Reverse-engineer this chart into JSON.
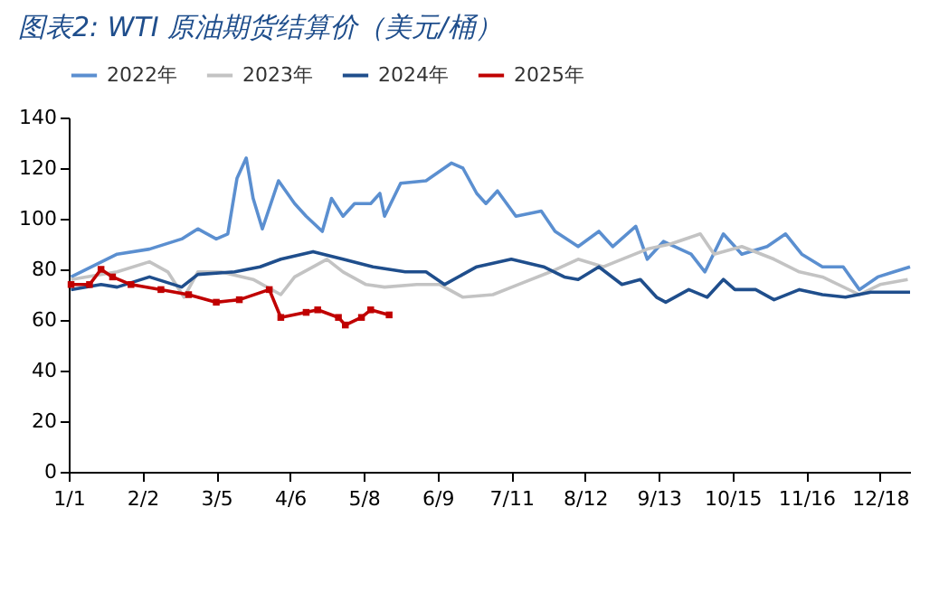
{
  "chart_data": {
    "type": "line",
    "title": "图表2:  WTI 原油期货结算价（美元/桶）",
    "xlim": [
      "--01-01",
      "--12-31"
    ],
    "xticks": [
      {
        "value": "--01-01",
        "label": "1/1"
      },
      {
        "value": "--02-02",
        "label": "2/2"
      },
      {
        "value": "--03-05",
        "label": "3/5"
      },
      {
        "value": "--04-06",
        "label": "4/6"
      },
      {
        "value": "--05-08",
        "label": "5/8"
      },
      {
        "value": "--06-09",
        "label": "6/9"
      },
      {
        "value": "--07-11",
        "label": "7/11"
      },
      {
        "value": "--08-12",
        "label": "8/12"
      },
      {
        "value": "--09-13",
        "label": "9/13"
      },
      {
        "value": "--10-15",
        "label": "10/15"
      },
      {
        "value": "--11-16",
        "label": "11/16"
      },
      {
        "value": "--12-18",
        "label": "12/18"
      }
    ],
    "ylim": [
      0,
      140
    ],
    "yticks": [
      0,
      20,
      40,
      60,
      80,
      100,
      120,
      140
    ],
    "grid": false,
    "legend": "top",
    "series": [
      {
        "name": "2022年",
        "color": "#5b8fd0",
        "x": [
          "--01-02",
          "--01-22",
          "--02-05",
          "--02-19",
          "--02-26",
          "--03-05",
          "--03-10",
          "--03-14",
          "--03-18",
          "--03-21",
          "--03-25",
          "--04-01",
          "--04-08",
          "--04-13",
          "--04-20",
          "--04-24",
          "--04-29",
          "--05-04",
          "--05-11",
          "--05-15",
          "--05-17",
          "--05-24",
          "--06-04",
          "--06-15",
          "--06-20",
          "--06-26",
          "--06-30",
          "--07-05",
          "--07-13",
          "--07-24",
          "--07-30",
          "--08-09",
          "--08-18",
          "--08-24",
          "--09-03",
          "--09-08",
          "--09-15",
          "--09-27",
          "--10-03",
          "--10-11",
          "--10-19",
          "--10-30",
          "--11-07",
          "--11-14",
          "--11-23",
          "--12-02",
          "--12-09",
          "--12-17",
          "--12-24",
          "--12-31"
        ],
        "values": [
          77,
          86,
          88,
          92,
          96,
          92,
          94,
          116,
          124,
          108,
          96,
          115,
          106,
          101,
          95,
          108,
          101,
          106,
          106,
          110,
          101,
          114,
          115,
          122,
          120,
          110,
          106,
          111,
          101,
          103,
          95,
          89,
          95,
          89,
          97,
          84,
          91,
          86,
          79,
          94,
          86,
          89,
          94,
          86,
          81,
          81,
          72,
          77,
          79,
          81
        ]
      },
      {
        "name": "2023年",
        "color": "#c3c3c3",
        "x": [
          "--01-02",
          "--01-22",
          "--02-05",
          "--02-13",
          "--02-20",
          "--02-26",
          "--03-07",
          "--03-21",
          "--04-02",
          "--04-08",
          "--04-22",
          "--04-29",
          "--05-09",
          "--05-17",
          "--05-31",
          "--06-10",
          "--06-20",
          "--07-03",
          "--07-14",
          "--07-28",
          "--08-09",
          "--08-20",
          "--08-28",
          "--09-08",
          "--09-18",
          "--10-01",
          "--10-07",
          "--10-19",
          "--11-02",
          "--11-13",
          "--11-23",
          "--12-09",
          "--12-18",
          "--12-30"
        ],
        "values": [
          76,
          79,
          83,
          79,
          69,
          79,
          79,
          76,
          70,
          77,
          84,
          79,
          74,
          73,
          74,
          74,
          69,
          70,
          74,
          79,
          84,
          81,
          84,
          88,
          90,
          94,
          86,
          89,
          84,
          79,
          77,
          70,
          74,
          76
        ]
      },
      {
        "name": "2024年",
        "color": "#1f4e8c",
        "x": [
          "--01-02",
          "--01-15",
          "--01-22",
          "--02-05",
          "--02-19",
          "--02-26",
          "--03-13",
          "--03-24",
          "--04-02",
          "--04-16",
          "--04-29",
          "--05-12",
          "--05-26",
          "--06-04",
          "--06-12",
          "--06-26",
          "--07-11",
          "--07-25",
          "--08-03",
          "--08-09",
          "--08-18",
          "--08-28",
          "--09-05",
          "--09-12",
          "--09-16",
          "--09-26",
          "--10-04",
          "--10-11",
          "--10-16",
          "--10-25",
          "--11-02",
          "--11-13",
          "--11-23",
          "--12-03",
          "--12-14",
          "--12-31"
        ],
        "values": [
          72,
          74,
          73,
          77,
          73,
          78,
          79,
          81,
          84,
          87,
          84,
          81,
          79,
          79,
          74,
          81,
          84,
          81,
          77,
          76,
          81,
          74,
          76,
          69,
          67,
          72,
          69,
          76,
          72,
          72,
          68,
          72,
          70,
          69,
          71,
          71
        ]
      },
      {
        "name": "2025年",
        "color": "#c00000",
        "marker": "square",
        "x": [
          "--01-02",
          "--01-10",
          "--01-15",
          "--01-20",
          "--01-28",
          "--02-10",
          "--02-22",
          "--03-05",
          "--03-15",
          "--03-28",
          "--04-02",
          "--04-13",
          "--04-18",
          "--04-27",
          "--04-30",
          "--05-07",
          "--05-11",
          "--05-19"
        ],
        "values": [
          74,
          74,
          80,
          77,
          74,
          72,
          70,
          67,
          68,
          72,
          61,
          63,
          64,
          61,
          58,
          61,
          64,
          62
        ]
      }
    ]
  }
}
